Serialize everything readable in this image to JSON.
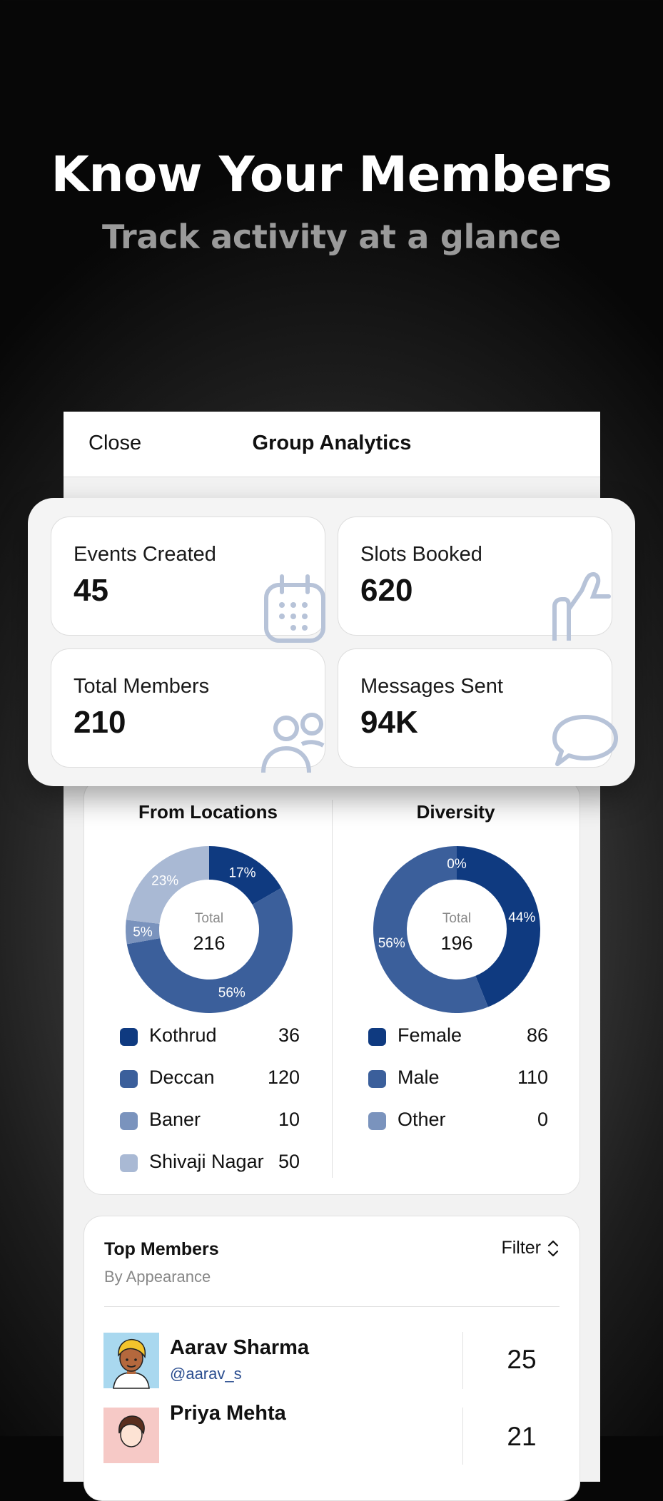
{
  "hero": {
    "title": "Know Your Members",
    "subtitle": "Track activity at a glance"
  },
  "header": {
    "close_label": "Close",
    "title": "Group Analytics"
  },
  "stats": [
    {
      "label": "Events Created",
      "value": "45",
      "icon": "calendar-icon"
    },
    {
      "label": "Slots Booked",
      "value": "620",
      "icon": "thumbs-up-icon"
    },
    {
      "label": "Total Members",
      "value": "210",
      "icon": "people-icon"
    },
    {
      "label": "Messages Sent",
      "value": "94K",
      "icon": "chat-bubble-icon"
    }
  ],
  "chart_data": [
    {
      "type": "pie",
      "title": "From Locations",
      "center_label": "Total",
      "total": "216",
      "categories": [
        "Kothrud",
        "Deccan",
        "Baner",
        "Shivaji Nagar"
      ],
      "values": [
        36,
        120,
        10,
        50
      ],
      "percent_labels": [
        "17%",
        "56%",
        "5%",
        "23%"
      ],
      "colors": [
        "#0f3a80",
        "#3b5f9b",
        "#7a93bd",
        "#a9b9d4"
      ]
    },
    {
      "type": "pie",
      "title": "Diversity",
      "center_label": "Total",
      "total": "196",
      "categories": [
        "Female",
        "Male",
        "Other"
      ],
      "values": [
        86,
        110,
        0
      ],
      "percent_labels": [
        "44%",
        "56%",
        "0%"
      ],
      "colors": [
        "#0f3a80",
        "#3b5f9b",
        "#7a93bd"
      ]
    }
  ],
  "members": {
    "title": "Top Members",
    "subtitle": "By Appearance",
    "filter_label": "Filter",
    "rows": [
      {
        "name": "Aarav Sharma",
        "handle": "@aarav_s",
        "count": "25"
      },
      {
        "name": "Priya Mehta",
        "handle": "",
        "count": "21"
      }
    ]
  }
}
